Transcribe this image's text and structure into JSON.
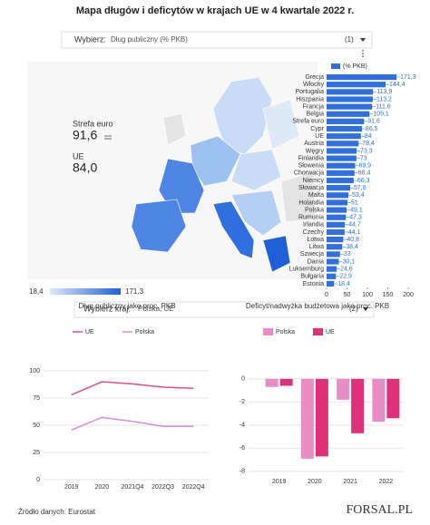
{
  "title": "Mapa długów i deficytów w krajach UE w 4 kwartale 2022 r.",
  "selector": {
    "label": "Wybierz:",
    "value": "Dług publiczny (% PKB)",
    "count": "(1)"
  },
  "stats": [
    {
      "label": "Strefa euro",
      "value": "91,6"
    },
    {
      "label": "UE",
      "value": "84,0"
    }
  ],
  "map": {
    "legend_labels": [
      "18,4",
      "171,3"
    ]
  },
  "selector2": {
    "label": "Wybierz kraj:",
    "value": "Polska, UE",
    "count": "(2)"
  },
  "chart_data": [
    {
      "type": "bar",
      "horizontal": true,
      "legend": "(% PKB)",
      "color": "#2f6fe0",
      "categories": [
        "Grecja",
        "Włochy",
        "Portugalia",
        "Hiszpania",
        "Francja",
        "Belgia",
        "Strefa euro",
        "Cypr",
        "UE",
        "Austria",
        "Węgry",
        "Finlandia",
        "Słowenia",
        "Chorwacja",
        "Niemcy",
        "Słowacja",
        "Malta",
        "Holandia",
        "Polska",
        "Rumunia",
        "Irlandia",
        "Czechy",
        "Łotwa",
        "Litwa",
        "Szwecja",
        "Dania",
        "Luksemburg",
        "Bułgaria",
        "Estonia"
      ],
      "values": [
        171.3,
        144.4,
        113.9,
        113.2,
        111.6,
        105.1,
        91.6,
        86.5,
        84,
        78.4,
        73.3,
        73,
        69.9,
        68.4,
        66.3,
        57.8,
        53.4,
        51,
        49.1,
        47.3,
        44.7,
        44.1,
        40.8,
        38.4,
        33,
        30.1,
        24.6,
        22.9,
        18.4
      ],
      "value_labels": [
        "171,3",
        "144,4",
        "113,9",
        "113,2",
        "111,6",
        "105,1",
        "91,6",
        "86,5",
        "84",
        "78,4",
        "73,3",
        "73",
        "69,9",
        "68,4",
        "66,3",
        "57,8",
        "53,4",
        "51",
        "49,1",
        "47,3",
        "44,7",
        "44,1",
        "40,8",
        "38,4",
        "33",
        "30,1",
        "24,6",
        "22,9",
        "18,4"
      ],
      "xlim": [
        0,
        200
      ],
      "xticks": [
        0,
        50,
        100,
        150,
        200
      ]
    },
    {
      "type": "line",
      "title": "Dług publiczny jako proc. PKB",
      "categories": [
        "2019",
        "2020",
        "2021Q4",
        "2022Q3",
        "2022Q4"
      ],
      "series": [
        {
          "name": "UE",
          "color": "#e0507a",
          "values": [
            78,
            90,
            88,
            85,
            84
          ]
        },
        {
          "name": "Polska",
          "color": "#d98ad6",
          "values": [
            45.7,
            57.2,
            53.6,
            49,
            49.1
          ]
        }
      ],
      "ylim": [
        0,
        110
      ],
      "yticks": [
        0,
        25,
        50,
        75,
        100
      ],
      "grid": true
    },
    {
      "type": "bar",
      "title": "Deficyt/nadwyżka budżetowa jako proc. PKB",
      "categories": [
        "2019",
        "2020",
        "2021",
        "2022"
      ],
      "series": [
        {
          "name": "Polska",
          "color": "#e88cc4",
          "values": [
            -0.7,
            -6.9,
            -1.8,
            -3.7
          ]
        },
        {
          "name": "UE",
          "color": "#e0307a",
          "values": [
            -0.6,
            -6.7,
            -4.7,
            -3.4
          ]
        }
      ],
      "ylim": [
        -8.4,
        1.4
      ],
      "yticks": [
        0,
        -2,
        -4,
        -6,
        -8
      ],
      "grid": true
    }
  ],
  "source": "Źródło danych: Eurostat",
  "logo": "FORSAL.PL"
}
